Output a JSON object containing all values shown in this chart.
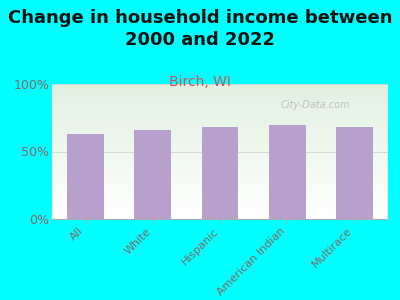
{
  "title": "Change in household income between\n2000 and 2022",
  "subtitle": "Birch, WI",
  "categories": [
    "All",
    "White",
    "Hispanic",
    "American Indian",
    "Multirace"
  ],
  "values": [
    63,
    66,
    68,
    70,
    68
  ],
  "bar_color": "#b8a0cc",
  "background_color": "#00FFFF",
  "plot_bg_color_top": "#ddeedd",
  "plot_bg_color_bottom": "#f0f5e8",
  "ylabel_ticks": [
    0,
    50,
    100
  ],
  "ylabel_labels": [
    "0%",
    "50%",
    "100%"
  ],
  "ylim": [
    0,
    100
  ],
  "title_fontsize": 13,
  "subtitle_fontsize": 10,
  "title_color": "#111111",
  "subtitle_color": "#cc5555",
  "tick_color": "#886666",
  "watermark": "City-Data.com",
  "watermark_color": "#aaaaaa"
}
